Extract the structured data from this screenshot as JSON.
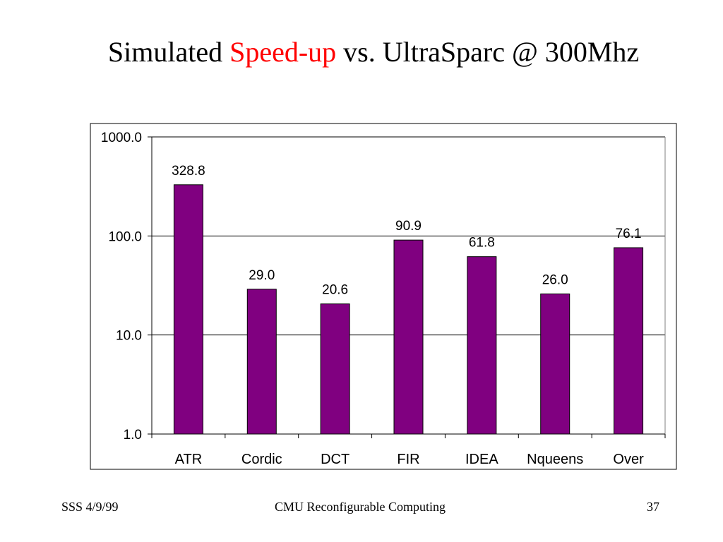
{
  "title": {
    "part1": "Simulated ",
    "highlight": "Speed-up",
    "part2": " vs. UltraSparc @ 300Mhz",
    "highlight_color": "#ff0000"
  },
  "chart_data": {
    "type": "bar",
    "categories": [
      "ATR",
      "Cordic",
      "DCT",
      "FIR",
      "IDEA",
      "Nqueens",
      "Over"
    ],
    "values": [
      328.8,
      29.0,
      20.6,
      90.9,
      61.8,
      26.0,
      76.1
    ],
    "value_labels": [
      "328.8",
      "29.0",
      "20.6",
      "90.9",
      "61.8",
      "26.0",
      "76.1"
    ],
    "yscale": "log",
    "ylim": [
      1,
      1000
    ],
    "yticks": [
      1,
      10,
      100,
      1000
    ],
    "ytick_labels": [
      "1.0",
      "10.0",
      "100.0",
      "1000.0"
    ],
    "grid": true,
    "legend": false,
    "bar_color": "#800080",
    "xlabel": "",
    "ylabel": ""
  },
  "footer": {
    "left": "SSS 4/9/99",
    "center": "CMU Reconfigurable Computing",
    "right": "37"
  }
}
